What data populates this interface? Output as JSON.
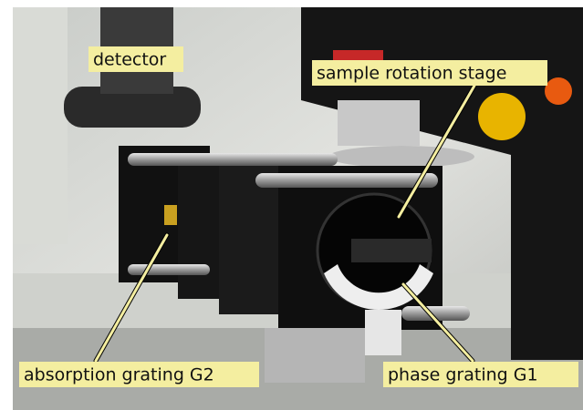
{
  "annotations": [
    "detector",
    "sample rotation stage",
    "absorption grating G2",
    "phase grating G1"
  ]
}
